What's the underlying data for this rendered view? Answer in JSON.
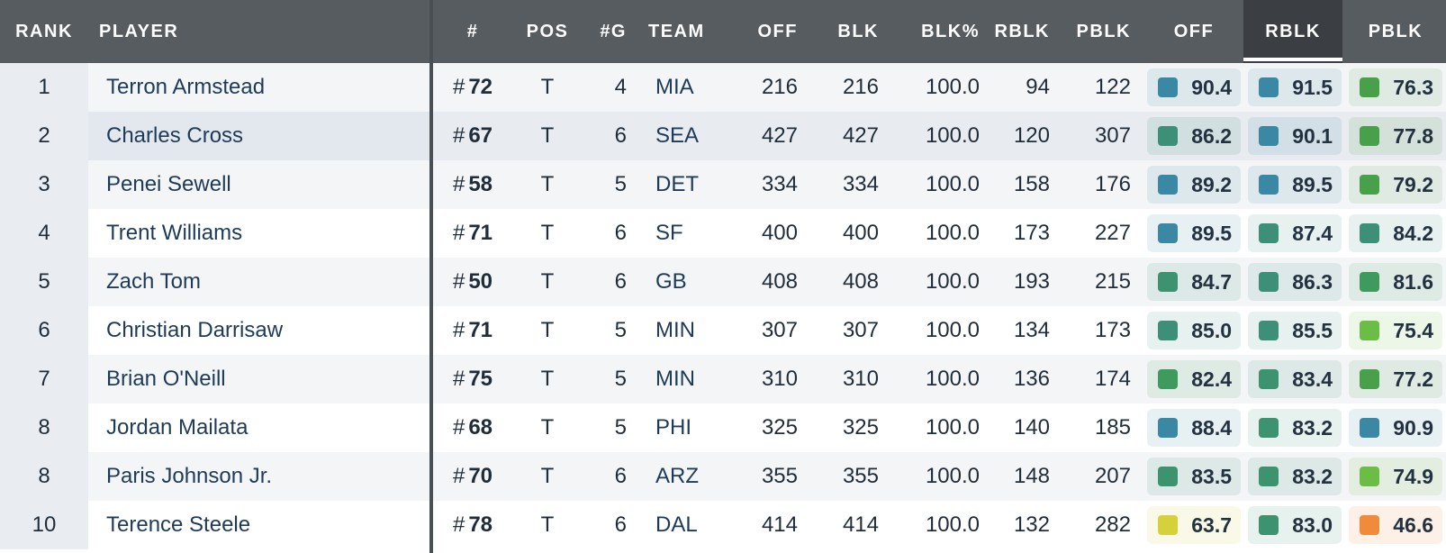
{
  "header": {
    "rank": "RANK",
    "player": "PLAYER",
    "number": "#",
    "pos": "POS",
    "games": "#G",
    "team": "TEAM",
    "off": "OFF",
    "blk": "BLK",
    "blk_pct": "BLK%",
    "rblk": "RBLK",
    "pblk": "PBLK",
    "grade_off": "OFF",
    "grade_rblk": "RBLK",
    "grade_pblk": "PBLK"
  },
  "colors": {
    "elite_blue": "#3a88a3",
    "teal_green": "#3d8f78",
    "green": "#48a05a",
    "light_green": "#6cbd45",
    "yellow": "#d6d03a",
    "orange": "#ef8b3a"
  },
  "rows": [
    {
      "rank": "1",
      "player": "Terron Armstead",
      "hash": "#",
      "number": "72",
      "pos": "T",
      "games": "4",
      "team": "MIA",
      "off": "216",
      "blk": "216",
      "blk_pct": "100.0",
      "rblk": "94",
      "pblk": "122",
      "grade_off": "90.4",
      "grade_rblk": "91.5",
      "grade_pblk": "76.3",
      "off_color": "#3a88a3",
      "rblk_color": "#3a88a3",
      "pblk_color": "#48a04a"
    },
    {
      "rank": "2",
      "player": "Charles Cross",
      "hash": "#",
      "number": "67",
      "pos": "T",
      "games": "6",
      "team": "SEA",
      "off": "427",
      "blk": "427",
      "blk_pct": "100.0",
      "rblk": "120",
      "pblk": "307",
      "grade_off": "86.2",
      "grade_rblk": "90.1",
      "grade_pblk": "77.8",
      "off_color": "#3d8f78",
      "rblk_color": "#3a88a3",
      "pblk_color": "#48a04a"
    },
    {
      "rank": "3",
      "player": "Penei Sewell",
      "hash": "#",
      "number": "58",
      "pos": "T",
      "games": "5",
      "team": "DET",
      "off": "334",
      "blk": "334",
      "blk_pct": "100.0",
      "rblk": "158",
      "pblk": "176",
      "grade_off": "89.2",
      "grade_rblk": "89.5",
      "grade_pblk": "79.2",
      "off_color": "#3a88a3",
      "rblk_color": "#3a88a3",
      "pblk_color": "#48a04a"
    },
    {
      "rank": "4",
      "player": "Trent Williams",
      "hash": "#",
      "number": "71",
      "pos": "T",
      "games": "6",
      "team": "SF",
      "off": "400",
      "blk": "400",
      "blk_pct": "100.0",
      "rblk": "173",
      "pblk": "227",
      "grade_off": "89.5",
      "grade_rblk": "87.4",
      "grade_pblk": "84.2",
      "off_color": "#3a88a3",
      "rblk_color": "#3d8f78",
      "pblk_color": "#3d8f78"
    },
    {
      "rank": "5",
      "player": "Zach Tom",
      "hash": "#",
      "number": "50",
      "pos": "T",
      "games": "6",
      "team": "GB",
      "off": "408",
      "blk": "408",
      "blk_pct": "100.0",
      "rblk": "193",
      "pblk": "215",
      "grade_off": "84.7",
      "grade_rblk": "86.3",
      "grade_pblk": "81.6",
      "off_color": "#3d9270",
      "rblk_color": "#3d8f78",
      "pblk_color": "#3f9a5e"
    },
    {
      "rank": "6",
      "player": "Christian Darrisaw",
      "hash": "#",
      "number": "71",
      "pos": "T",
      "games": "5",
      "team": "MIN",
      "off": "307",
      "blk": "307",
      "blk_pct": "100.0",
      "rblk": "134",
      "pblk": "173",
      "grade_off": "85.0",
      "grade_rblk": "85.5",
      "grade_pblk": "75.4",
      "off_color": "#3d8f78",
      "rblk_color": "#3d8f78",
      "pblk_color": "#6cbd45"
    },
    {
      "rank": "7",
      "player": "Brian O'Neill",
      "hash": "#",
      "number": "75",
      "pos": "T",
      "games": "5",
      "team": "MIN",
      "off": "310",
      "blk": "310",
      "blk_pct": "100.0",
      "rblk": "136",
      "pblk": "174",
      "grade_off": "82.4",
      "grade_rblk": "83.4",
      "grade_pblk": "77.2",
      "off_color": "#3f9a5e",
      "rblk_color": "#3d9270",
      "pblk_color": "#48a04a"
    },
    {
      "rank": "8",
      "player": "Jordan Mailata",
      "hash": "#",
      "number": "68",
      "pos": "T",
      "games": "5",
      "team": "PHI",
      "off": "325",
      "blk": "325",
      "blk_pct": "100.0",
      "rblk": "140",
      "pblk": "185",
      "grade_off": "88.4",
      "grade_rblk": "83.2",
      "grade_pblk": "90.9",
      "off_color": "#3a88a3",
      "rblk_color": "#3d9270",
      "pblk_color": "#3a88a3"
    },
    {
      "rank": "8",
      "player": "Paris Johnson Jr.",
      "hash": "#",
      "number": "70",
      "pos": "T",
      "games": "6",
      "team": "ARZ",
      "off": "355",
      "blk": "355",
      "blk_pct": "100.0",
      "rblk": "148",
      "pblk": "207",
      "grade_off": "83.5",
      "grade_rblk": "83.2",
      "grade_pblk": "74.9",
      "off_color": "#3d9270",
      "rblk_color": "#3d9270",
      "pblk_color": "#6cbd45"
    },
    {
      "rank": "10",
      "player": "Terence Steele",
      "hash": "#",
      "number": "78",
      "pos": "T",
      "games": "6",
      "team": "DAL",
      "off": "414",
      "blk": "414",
      "blk_pct": "100.0",
      "rblk": "132",
      "pblk": "282",
      "grade_off": "63.7",
      "grade_rblk": "83.0",
      "grade_pblk": "46.6",
      "off_color": "#d6d03a",
      "rblk_color": "#3d9270",
      "pblk_color": "#ef8b3a"
    }
  ]
}
